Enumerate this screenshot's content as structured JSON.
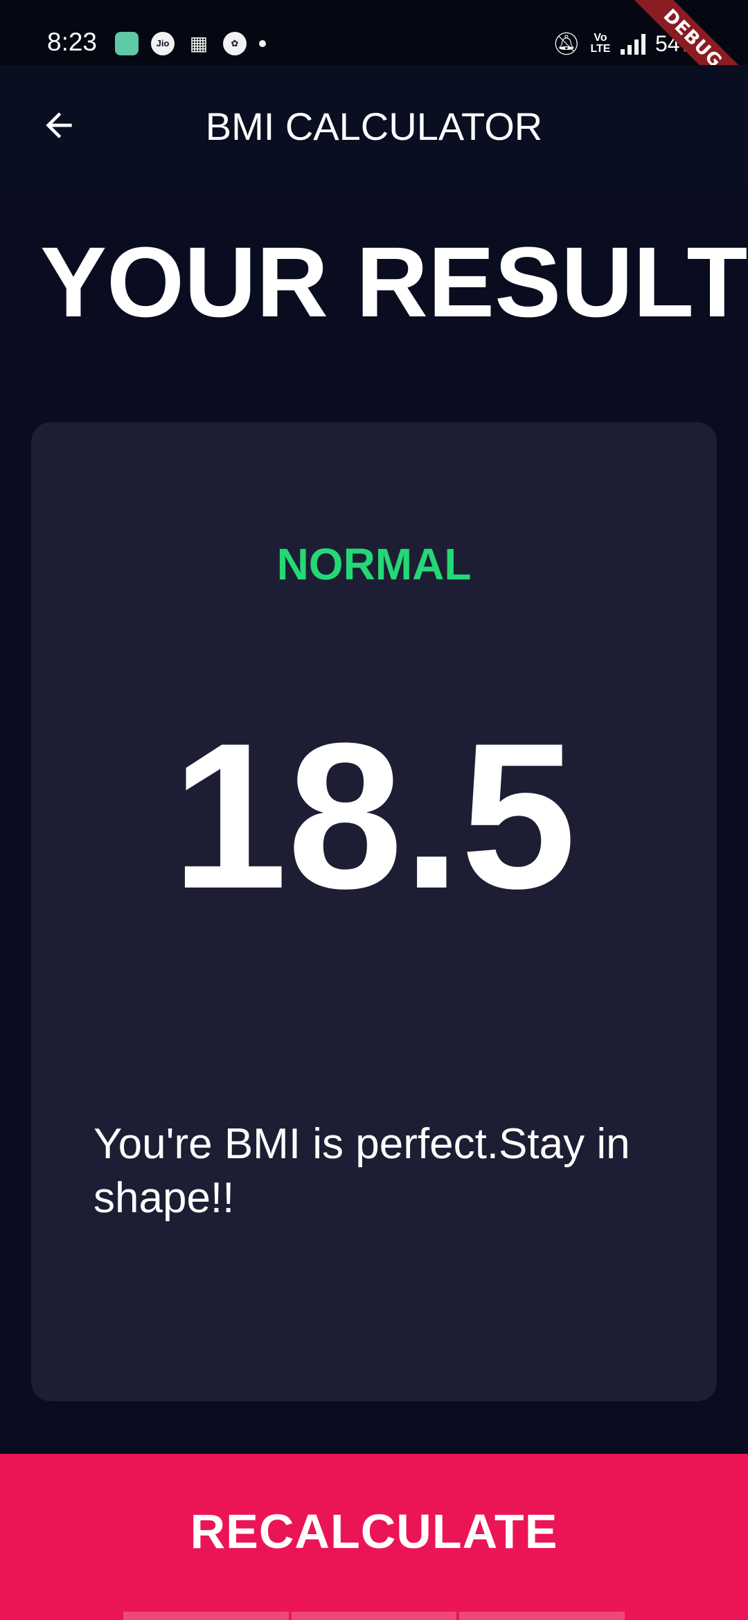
{
  "status_bar": {
    "time": "8:23",
    "left_icons": [
      "app-icon",
      "jio-icon",
      "calendar-icon",
      "palette-icon",
      "notification-dot"
    ],
    "jio_label": "Jio",
    "volte_label": "Vo LTE",
    "battery": "54%"
  },
  "debug_banner": "DEBUG",
  "app_bar": {
    "title": "BMI CALCULATOR",
    "back_icon": "arrow-back-icon"
  },
  "heading": "YOUR RESULT",
  "result": {
    "status": "NORMAL",
    "status_color": "#24d876",
    "bmi": "18.5",
    "message": "You're BMI is perfect.Stay in shape!!"
  },
  "footer": {
    "button_label": "RECALCULATE",
    "button_color": "#eb1555"
  },
  "colors": {
    "background": "#090d1f",
    "card": "#1d1e33"
  }
}
